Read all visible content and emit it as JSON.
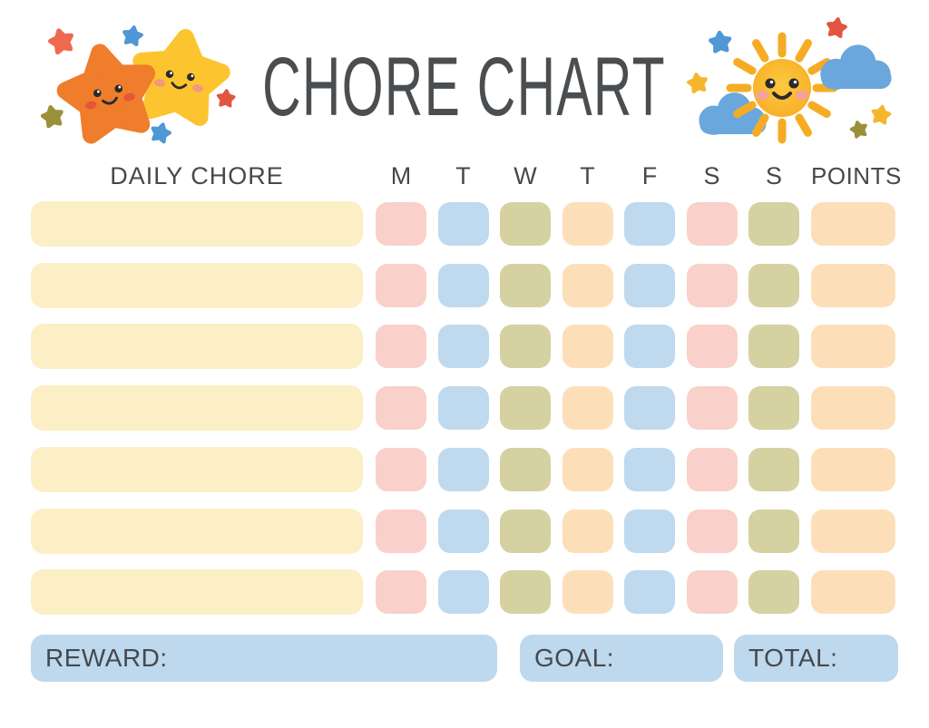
{
  "title": "CHORE CHART",
  "table": {
    "chore_header": "DAILY CHORE",
    "day_headers": [
      "M",
      "T",
      "W",
      "T",
      "F",
      "S",
      "S"
    ],
    "points_header": "POINTS",
    "num_rows": 7,
    "row_cell_colors": [
      "pink",
      "blue",
      "olive",
      "peach",
      "blue",
      "pink",
      "olive"
    ],
    "points_cell_color": "peach",
    "chore_cell_color": "cream",
    "chore_values": [
      "",
      "",
      "",
      "",
      "",
      "",
      ""
    ]
  },
  "footer": {
    "reward_label": "REWARD:",
    "reward_value": "",
    "goal_label": "GOAL:",
    "goal_value": "",
    "total_label": "TOTAL:",
    "total_value": ""
  },
  "colors": {
    "pink": "#f9d1ca",
    "blue": "#bfd9ef",
    "olive": "#d5d1a1",
    "peach": "#fcdfb9",
    "cream": "#fcefc6",
    "footer_box": "#bed8ee",
    "text": "#45494c",
    "title": "#4a4e51",
    "star_orange": "#ef7d2c",
    "star_yellow": "#fcc52f",
    "sun": "#f8b12a",
    "sun_ray": "#f5ac25",
    "cloud": "#69a7dd",
    "mini_star_red": "#e25540",
    "mini_star_orange": "#ed6a4f",
    "mini_star_blue": "#4f97d5",
    "mini_star_olive": "#9a9038",
    "mini_star_yellow": "#f5b62c"
  },
  "decorations": {
    "left": [
      "orange-star",
      "yellow-star",
      "mini-stars"
    ],
    "right": [
      "sun",
      "clouds",
      "mini-stars"
    ]
  }
}
